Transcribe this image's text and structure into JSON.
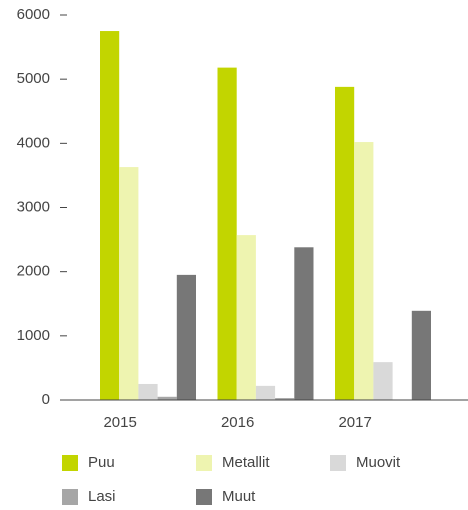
{
  "chart_data": {
    "type": "bar",
    "categories": [
      "2015",
      "2016",
      "2017"
    ],
    "series": [
      {
        "name": "Puu",
        "color": "#c2d500",
        "values": [
          5750,
          5180,
          4880
        ]
      },
      {
        "name": "Metallit",
        "color": "#eef4b0",
        "values": [
          3630,
          2570,
          4020
        ]
      },
      {
        "name": "Muovit",
        "color": "#d9d9d9",
        "values": [
          250,
          220,
          590
        ]
      },
      {
        "name": "Lasi",
        "color": "#a6a6a6",
        "values": [
          50,
          30,
          0
        ]
      },
      {
        "name": "Muut",
        "color": "#777777",
        "values": [
          1950,
          2380,
          1390
        ]
      }
    ],
    "ylim": [
      0,
      6000
    ],
    "yticks": [
      0,
      1000,
      2000,
      3000,
      4000,
      5000,
      6000
    ],
    "grid": false
  }
}
